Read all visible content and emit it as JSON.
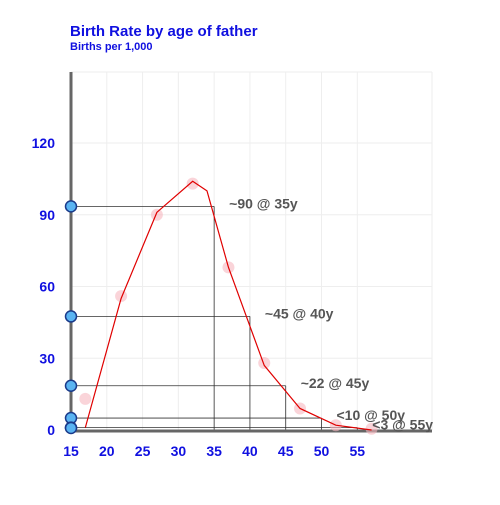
{
  "chart_data": {
    "type": "line",
    "title": "Birth Rate by age of father",
    "subtitle": "Births per 1,000",
    "xlabel": "",
    "ylabel": "",
    "xlim": [
      15,
      60
    ],
    "ylim": [
      0,
      140
    ],
    "x_ticks": [
      15,
      20,
      25,
      30,
      35,
      40,
      45,
      50,
      55
    ],
    "y_ticks": [
      0,
      30,
      60,
      90,
      120
    ],
    "grid": true,
    "line_color": "#e00000",
    "scatter_color": "#f7b8c0",
    "marker_color": "#5ab4f2",
    "axis_color": "#666666",
    "text_color": "#1010e0",
    "line": {
      "x": [
        17,
        22,
        27,
        32,
        34,
        37,
        42,
        47,
        52,
        57
      ],
      "y": [
        1,
        55,
        91,
        104,
        100,
        68,
        27,
        9,
        2,
        0
      ]
    },
    "scatter": {
      "x": [
        17,
        22,
        27,
        32,
        37,
        42,
        47,
        52,
        57
      ],
      "y": [
        13,
        56,
        90,
        103,
        68,
        28,
        9,
        2,
        0.5
      ]
    },
    "highlight_markers": [
      {
        "x": 35,
        "y": 93.5,
        "label": "~90 @ 35y"
      },
      {
        "x": 40,
        "y": 47.5,
        "label": "~45 @ 40y"
      },
      {
        "x": 45,
        "y": 18.5,
        "label": "~22 @ 45y"
      },
      {
        "x": 50,
        "y": 5,
        "label": "<10 @ 50y"
      },
      {
        "x": 55,
        "y": 1,
        "label": "<3 @ 55y"
      }
    ]
  }
}
